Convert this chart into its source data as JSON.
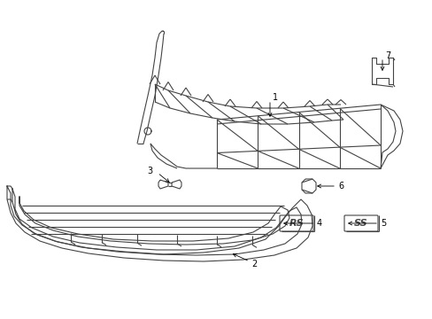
{
  "background_color": "#ffffff",
  "line_color": "#444444",
  "label_color": "#000000",
  "fig_w": 4.89,
  "fig_h": 3.6,
  "dpi": 100
}
